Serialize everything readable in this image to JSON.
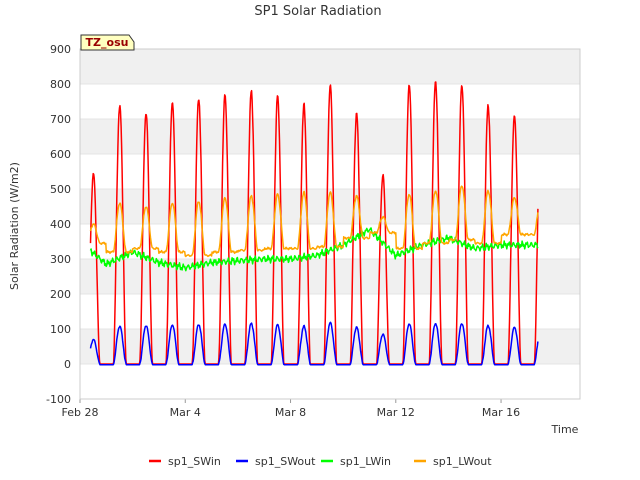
{
  "chart_data": {
    "type": "line",
    "title": "SP1 Solar Radiation",
    "xlabel": "Time",
    "ylabel": "Solar Radiation (W/m2)",
    "ylim": [
      -100,
      900
    ],
    "yticks": [
      -100,
      0,
      100,
      200,
      300,
      400,
      500,
      600,
      700,
      800,
      900
    ],
    "xlim_days": [
      0,
      19
    ],
    "xticks": [
      {
        "label": "Feb 28",
        "day": 0
      },
      {
        "label": "Mar 4",
        "day": 4
      },
      {
        "label": "Mar 8",
        "day": 8
      },
      {
        "label": "Mar 12",
        "day": 12
      },
      {
        "label": "Mar 16",
        "day": 16
      }
    ],
    "station_label": "TZ_osu",
    "grid": "horizontal bands",
    "legend_position": "bottom",
    "series": [
      {
        "name": "sp1_SWin",
        "color": "#ff0000",
        "daily_peaks": [
          545,
          740,
          720,
          750,
          760,
          770,
          780,
          765,
          740,
          795,
          715,
          540,
          800,
          810,
          800,
          740,
          710
        ],
        "night_value": 0
      },
      {
        "name": "sp1_SWout",
        "color": "#0000ff",
        "daily_peaks": [
          70,
          108,
          110,
          112,
          113,
          114,
          116,
          112,
          108,
          118,
          105,
          85,
          115,
          116,
          116,
          110,
          105
        ],
        "night_value": 0
      },
      {
        "name": "sp1_LWin",
        "color": "#00ff00",
        "daily_values": [
          350,
          285,
          320,
          290,
          275,
          290,
          295,
          300,
          300,
          310,
          340,
          385,
          310,
          340,
          360,
          330,
          340
        ]
      },
      {
        "name": "sp1_LWout",
        "color": "#ffa500",
        "daily_peaks": [
          400,
          460,
          450,
          460,
          465,
          475,
          480,
          485,
          490,
          490,
          480,
          420,
          485,
          495,
          510,
          495,
          475
        ],
        "night_values": [
          345,
          320,
          330,
          320,
          310,
          320,
          325,
          330,
          330,
          335,
          360,
          375,
          330,
          345,
          355,
          345,
          370
        ]
      }
    ]
  }
}
